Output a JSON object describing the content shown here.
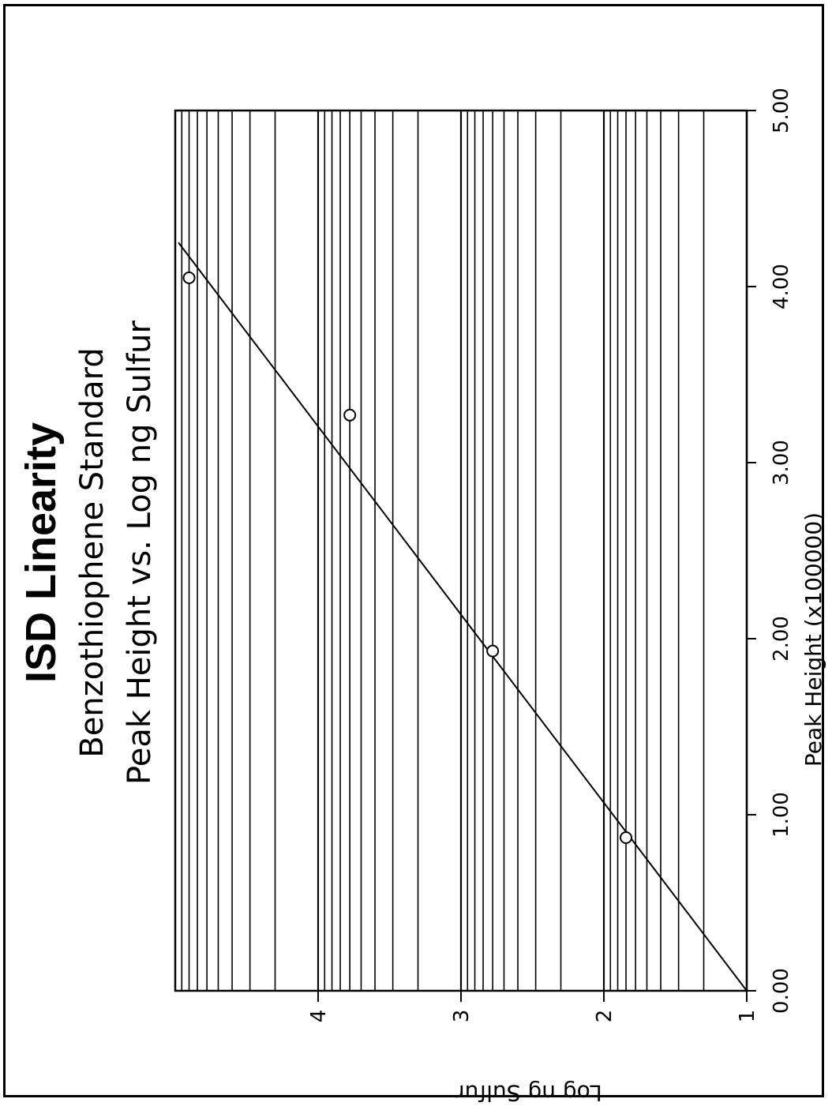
{
  "chart_data": {
    "type": "scatter",
    "title": "ISD Linearity",
    "subtitle": "Benzothiophene Standard",
    "subtitle2": "Peak Height vs. Log ng Sulfur",
    "xlabel": "Peak Height (x100000)",
    "ylabel": "Log ng Sulfur",
    "x_ticks": [
      "0.00",
      "1.00",
      "2.00",
      "3.00",
      "4.00",
      "5.00"
    ],
    "y_ticks": [
      "1",
      "2",
      "3",
      "4"
    ],
    "xlim": [
      0,
      5
    ],
    "y_scale": "log",
    "ylim": [
      10,
      100000
    ],
    "grid": true,
    "orientation": "rotated 90 degrees counter-clockwise",
    "series": [
      {
        "marker": "open-circle",
        "x": [
          0.87,
          1.93,
          3.27,
          4.05
        ],
        "y": [
          70,
          600,
          6000,
          80000
        ]
      }
    ],
    "fit_line": {
      "x": [
        0.0,
        4.25
      ],
      "y": [
        10,
        95000
      ]
    }
  }
}
